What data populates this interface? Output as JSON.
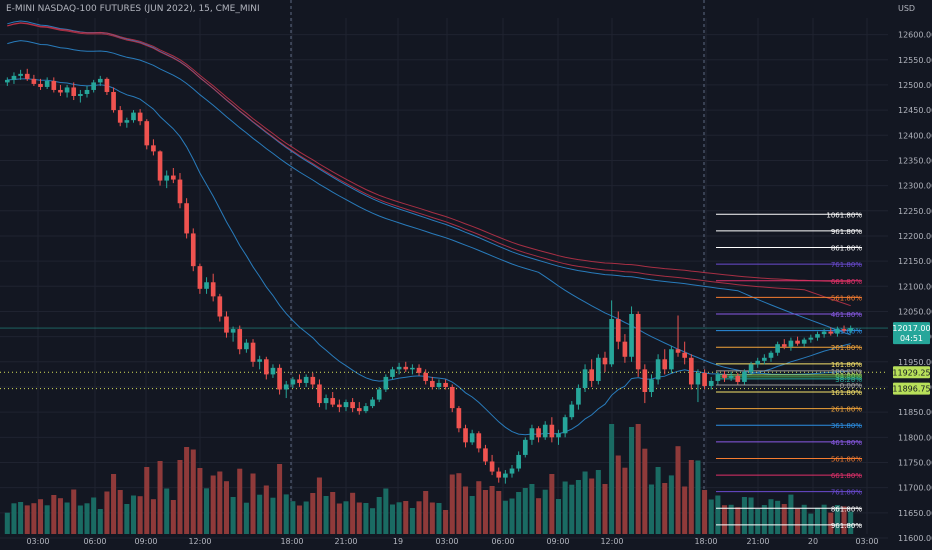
{
  "header": {
    "symbol_title": "E-MINI NASDAQ-100 FUTURES (JUN 2022), 15, CME_MINI",
    "currency": "USD"
  },
  "colors": {
    "background": "#131722",
    "grid": "#1f2330",
    "axis_text": "#b2b5be",
    "bull": "#26a69a",
    "bear": "#ef5350",
    "bull_volume": "#1a6b63",
    "bear_volume": "#8f3a3a",
    "ma_blue": "#2d8dd6",
    "ma_red": "#c2344a",
    "last_price_badge": "#26a69a",
    "highlight_badge": "#b8e05a"
  },
  "chart_data": {
    "type": "candlestick",
    "title": "E-MINI NASDAQ-100 FUTURES (JUN 2022), 15, CME_MINI",
    "ylim": [
      11600,
      12625
    ],
    "y_ticks": [
      11600,
      11650,
      11700,
      11750,
      11800,
      11850,
      11900,
      11950,
      12000,
      12050,
      12100,
      12150,
      12200,
      12250,
      12300,
      12350,
      12400,
      12450,
      12500,
      12550,
      12600
    ],
    "x_ticks": [
      "03:00",
      "06:00",
      "09:00",
      "12:00",
      "18:00",
      "21:00",
      "19",
      "03:00",
      "06:00",
      "09:00",
      "12:00",
      "18:00",
      "21:00",
      "20",
      "03:00"
    ],
    "candles": [
      {
        "t": 1,
        "o": 12505,
        "h": 12515,
        "l": 12498,
        "c": 12510
      },
      {
        "t": 2,
        "o": 12510,
        "h": 12525,
        "l": 12502,
        "c": 12518
      },
      {
        "t": 3,
        "o": 12518,
        "h": 12530,
        "l": 12510,
        "c": 12522
      },
      {
        "t": 4,
        "o": 12522,
        "h": 12532,
        "l": 12508,
        "c": 12512
      },
      {
        "t": 5,
        "o": 12512,
        "h": 12520,
        "l": 12498,
        "c": 12502
      },
      {
        "t": 6,
        "o": 12502,
        "h": 12512,
        "l": 12490,
        "c": 12496
      },
      {
        "t": 7,
        "o": 12496,
        "h": 12515,
        "l": 12492,
        "c": 12508
      },
      {
        "t": 8,
        "o": 12508,
        "h": 12515,
        "l": 12485,
        "c": 12490
      },
      {
        "t": 9,
        "o": 12490,
        "h": 12500,
        "l": 12478,
        "c": 12485
      },
      {
        "t": 10,
        "o": 12485,
        "h": 12500,
        "l": 12475,
        "c": 12495
      },
      {
        "t": 11,
        "o": 12495,
        "h": 12505,
        "l": 12470,
        "c": 12478
      },
      {
        "t": 12,
        "o": 12478,
        "h": 12490,
        "l": 12465,
        "c": 12482
      },
      {
        "t": 13,
        "o": 12482,
        "h": 12498,
        "l": 12475,
        "c": 12490
      },
      {
        "t": 14,
        "o": 12490,
        "h": 12510,
        "l": 12485,
        "c": 12505
      },
      {
        "t": 15,
        "o": 12505,
        "h": 12518,
        "l": 12498,
        "c": 12512
      },
      {
        "t": 16,
        "o": 12512,
        "h": 12515,
        "l": 12480,
        "c": 12486
      },
      {
        "t": 17,
        "o": 12486,
        "h": 12495,
        "l": 12445,
        "c": 12450
      },
      {
        "t": 18,
        "o": 12450,
        "h": 12458,
        "l": 12418,
        "c": 12425
      },
      {
        "t": 19,
        "o": 12425,
        "h": 12435,
        "l": 12415,
        "c": 12430
      },
      {
        "t": 20,
        "o": 12430,
        "h": 12450,
        "l": 12425,
        "c": 12445
      },
      {
        "t": 21,
        "o": 12445,
        "h": 12452,
        "l": 12420,
        "c": 12428
      },
      {
        "t": 22,
        "o": 12428,
        "h": 12432,
        "l": 12372,
        "c": 12380
      },
      {
        "t": 23,
        "o": 12380,
        "h": 12392,
        "l": 12360,
        "c": 12368
      },
      {
        "t": 24,
        "o": 12368,
        "h": 12370,
        "l": 12300,
        "c": 12310
      },
      {
        "t": 25,
        "o": 12310,
        "h": 12330,
        "l": 12295,
        "c": 12320
      },
      {
        "t": 26,
        "o": 12320,
        "h": 12335,
        "l": 12305,
        "c": 12312
      },
      {
        "t": 27,
        "o": 12312,
        "h": 12325,
        "l": 12255,
        "c": 12265
      },
      {
        "t": 28,
        "o": 12265,
        "h": 12275,
        "l": 12195,
        "c": 12205
      },
      {
        "t": 29,
        "o": 12205,
        "h": 12215,
        "l": 12130,
        "c": 12140
      },
      {
        "t": 30,
        "o": 12140,
        "h": 12145,
        "l": 12085,
        "c": 12095
      },
      {
        "t": 31,
        "o": 12095,
        "h": 12118,
        "l": 12085,
        "c": 12108
      },
      {
        "t": 32,
        "o": 12108,
        "h": 12125,
        "l": 12070,
        "c": 12080
      },
      {
        "t": 33,
        "o": 12080,
        "h": 12085,
        "l": 12030,
        "c": 12040
      },
      {
        "t": 34,
        "o": 12040,
        "h": 12050,
        "l": 11998,
        "c": 12008
      },
      {
        "t": 35,
        "o": 12008,
        "h": 12020,
        "l": 11990,
        "c": 12015
      },
      {
        "t": 36,
        "o": 12015,
        "h": 12022,
        "l": 11965,
        "c": 11975
      },
      {
        "t": 37,
        "o": 11975,
        "h": 11995,
        "l": 11968,
        "c": 11988
      },
      {
        "t": 38,
        "o": 11988,
        "h": 11995,
        "l": 11940,
        "c": 11950
      },
      {
        "t": 39,
        "o": 11950,
        "h": 11962,
        "l": 11935,
        "c": 11955
      },
      {
        "t": 40,
        "o": 11955,
        "h": 11960,
        "l": 11915,
        "c": 11925
      },
      {
        "t": 41,
        "o": 11925,
        "h": 11945,
        "l": 11918,
        "c": 11938
      },
      {
        "t": 42,
        "o": 11938,
        "h": 11945,
        "l": 11885,
        "c": 11895
      },
      {
        "t": 43,
        "o": 11895,
        "h": 11912,
        "l": 11878,
        "c": 11905
      },
      {
        "t": 44,
        "o": 11905,
        "h": 11920,
        "l": 11898,
        "c": 11915
      },
      {
        "t": 45,
        "o": 11915,
        "h": 11925,
        "l": 11900,
        "c": 11908
      },
      {
        "t": 46,
        "o": 11908,
        "h": 11925,
        "l": 11900,
        "c": 11920
      },
      {
        "t": 47,
        "o": 11920,
        "h": 11928,
        "l": 11898,
        "c": 11905
      },
      {
        "t": 48,
        "o": 11905,
        "h": 11915,
        "l": 11860,
        "c": 11868
      },
      {
        "t": 49,
        "o": 11868,
        "h": 11885,
        "l": 11855,
        "c": 11878
      },
      {
        "t": 50,
        "o": 11878,
        "h": 11890,
        "l": 11860,
        "c": 11865
      },
      {
        "t": 51,
        "o": 11865,
        "h": 11875,
        "l": 11850,
        "c": 11860
      },
      {
        "t": 52,
        "o": 11860,
        "h": 11875,
        "l": 11852,
        "c": 11870
      },
      {
        "t": 53,
        "o": 11870,
        "h": 11878,
        "l": 11850,
        "c": 11858
      },
      {
        "t": 54,
        "o": 11858,
        "h": 11870,
        "l": 11845,
        "c": 11852
      },
      {
        "t": 55,
        "o": 11852,
        "h": 11868,
        "l": 11848,
        "c": 11862
      },
      {
        "t": 56,
        "o": 11862,
        "h": 11880,
        "l": 11858,
        "c": 11875
      },
      {
        "t": 57,
        "o": 11875,
        "h": 11900,
        "l": 11870,
        "c": 11895
      },
      {
        "t": 58,
        "o": 11895,
        "h": 11925,
        "l": 11890,
        "c": 11920
      },
      {
        "t": 59,
        "o": 11920,
        "h": 11940,
        "l": 11915,
        "c": 11935
      },
      {
        "t": 60,
        "o": 11935,
        "h": 11948,
        "l": 11925,
        "c": 11940
      },
      {
        "t": 61,
        "o": 11940,
        "h": 11950,
        "l": 11930,
        "c": 11935
      },
      {
        "t": 62,
        "o": 11935,
        "h": 11945,
        "l": 11925,
        "c": 11938
      },
      {
        "t": 63,
        "o": 11938,
        "h": 11945,
        "l": 11922,
        "c": 11928
      },
      {
        "t": 64,
        "o": 11928,
        "h": 11935,
        "l": 11905,
        "c": 11912
      },
      {
        "t": 65,
        "o": 11912,
        "h": 11920,
        "l": 11895,
        "c": 11900
      },
      {
        "t": 66,
        "o": 11900,
        "h": 11915,
        "l": 11895,
        "c": 11908
      },
      {
        "t": 67,
        "o": 11908,
        "h": 11915,
        "l": 11895,
        "c": 11900
      },
      {
        "t": 68,
        "o": 11900,
        "h": 11905,
        "l": 11850,
        "c": 11858
      },
      {
        "t": 69,
        "o": 11858,
        "h": 11862,
        "l": 11810,
        "c": 11818
      },
      {
        "t": 70,
        "o": 11818,
        "h": 11825,
        "l": 11780,
        "c": 11790
      },
      {
        "t": 71,
        "o": 11790,
        "h": 11815,
        "l": 11785,
        "c": 11808
      },
      {
        "t": 72,
        "o": 11808,
        "h": 11812,
        "l": 11770,
        "c": 11778
      },
      {
        "t": 73,
        "o": 11778,
        "h": 11785,
        "l": 11745,
        "c": 11752
      },
      {
        "t": 74,
        "o": 11752,
        "h": 11765,
        "l": 11725,
        "c": 11732
      },
      {
        "t": 75,
        "o": 11732,
        "h": 11740,
        "l": 11710,
        "c": 11720
      },
      {
        "t": 76,
        "o": 11720,
        "h": 11735,
        "l": 11708,
        "c": 11728
      },
      {
        "t": 77,
        "o": 11728,
        "h": 11745,
        "l": 11720,
        "c": 11738
      },
      {
        "t": 78,
        "o": 11738,
        "h": 11772,
        "l": 11732,
        "c": 11765
      },
      {
        "t": 79,
        "o": 11765,
        "h": 11800,
        "l": 11760,
        "c": 11795
      },
      {
        "t": 80,
        "o": 11795,
        "h": 11825,
        "l": 11785,
        "c": 11818
      },
      {
        "t": 81,
        "o": 11818,
        "h": 11822,
        "l": 11790,
        "c": 11800
      },
      {
        "t": 82,
        "o": 11800,
        "h": 11832,
        "l": 11795,
        "c": 11825
      },
      {
        "t": 83,
        "o": 11825,
        "h": 11840,
        "l": 11790,
        "c": 11800
      },
      {
        "t": 84,
        "o": 11800,
        "h": 11815,
        "l": 11785,
        "c": 11808
      },
      {
        "t": 85,
        "o": 11808,
        "h": 11845,
        "l": 11800,
        "c": 11840
      },
      {
        "t": 86,
        "o": 11840,
        "h": 11872,
        "l": 11835,
        "c": 11865
      },
      {
        "t": 87,
        "o": 11865,
        "h": 11905,
        "l": 11855,
        "c": 11898
      },
      {
        "t": 88,
        "o": 11898,
        "h": 11945,
        "l": 11890,
        "c": 11935
      },
      {
        "t": 89,
        "o": 11935,
        "h": 11955,
        "l": 11900,
        "c": 11912
      },
      {
        "t": 90,
        "o": 11912,
        "h": 11965,
        "l": 11905,
        "c": 11958
      },
      {
        "t": 91,
        "o": 11958,
        "h": 11970,
        "l": 11930,
        "c": 11945
      },
      {
        "t": 92,
        "o": 11945,
        "h": 12072,
        "l": 11940,
        "c": 12035
      },
      {
        "t": 93,
        "o": 12035,
        "h": 12050,
        "l": 11975,
        "c": 11990
      },
      {
        "t": 94,
        "o": 11990,
        "h": 12005,
        "l": 11948,
        "c": 11960
      },
      {
        "t": 95,
        "o": 11960,
        "h": 12060,
        "l": 11950,
        "c": 12045
      },
      {
        "t": 96,
        "o": 12045,
        "h": 12050,
        "l": 11920,
        "c": 11935
      },
      {
        "t": 97,
        "o": 11935,
        "h": 11945,
        "l": 11868,
        "c": 11890
      },
      {
        "t": 98,
        "o": 11890,
        "h": 11925,
        "l": 11880,
        "c": 11915
      },
      {
        "t": 99,
        "o": 11915,
        "h": 11965,
        "l": 11905,
        "c": 11955
      },
      {
        "t": 100,
        "o": 11955,
        "h": 11975,
        "l": 11925,
        "c": 11935
      },
      {
        "t": 101,
        "o": 11935,
        "h": 11982,
        "l": 11928,
        "c": 11975
      },
      {
        "t": 102,
        "o": 11975,
        "h": 12042,
        "l": 11960,
        "c": 11968
      },
      {
        "t": 103,
        "o": 11968,
        "h": 11990,
        "l": 11945,
        "c": 11958
      },
      {
        "t": 104,
        "o": 11958,
        "h": 11965,
        "l": 11895,
        "c": 11905
      },
      {
        "t": 105,
        "o": 11905,
        "h": 11935,
        "l": 11870,
        "c": 11928
      },
      {
        "t": 106,
        "o": 11928,
        "h": 11935,
        "l": 11895,
        "c": 11902
      },
      {
        "t": 107,
        "o": 11902,
        "h": 11920,
        "l": 11895,
        "c": 11912
      },
      {
        "t": 108,
        "o": 11912,
        "h": 11930,
        "l": 11905,
        "c": 11925
      },
      {
        "t": 109,
        "o": 11925,
        "h": 11932,
        "l": 11910,
        "c": 11918
      },
      {
        "t": 110,
        "o": 11918,
        "h": 11930,
        "l": 11912,
        "c": 11922
      },
      {
        "t": 111,
        "o": 11922,
        "h": 11928,
        "l": 11905,
        "c": 11910
      },
      {
        "t": 112,
        "o": 11910,
        "h": 11935,
        "l": 11905,
        "c": 11930
      },
      {
        "t": 113,
        "o": 11930,
        "h": 11950,
        "l": 11925,
        "c": 11945
      },
      {
        "t": 114,
        "o": 11945,
        "h": 11958,
        "l": 11938,
        "c": 11952
      },
      {
        "t": 115,
        "o": 11952,
        "h": 11965,
        "l": 11945,
        "c": 11958
      },
      {
        "t": 116,
        "o": 11958,
        "h": 11972,
        "l": 11950,
        "c": 11968
      },
      {
        "t": 117,
        "o": 11968,
        "h": 11990,
        "l": 11962,
        "c": 11985
      },
      {
        "t": 118,
        "o": 11985,
        "h": 11995,
        "l": 11975,
        "c": 11980
      },
      {
        "t": 119,
        "o": 11980,
        "h": 11998,
        "l": 11972,
        "c": 11992
      },
      {
        "t": 120,
        "o": 11992,
        "h": 12000,
        "l": 11982,
        "c": 11986
      },
      {
        "t": 121,
        "o": 11986,
        "h": 11998,
        "l": 11980,
        "c": 11994
      },
      {
        "t": 122,
        "o": 11994,
        "h": 12004,
        "l": 11988,
        "c": 11998
      },
      {
        "t": 123,
        "o": 11998,
        "h": 12010,
        "l": 11992,
        "c": 12005
      },
      {
        "t": 124,
        "o": 12005,
        "h": 12015,
        "l": 11998,
        "c": 12010
      },
      {
        "t": 125,
        "o": 12010,
        "h": 12018,
        "l": 12002,
        "c": 12006
      },
      {
        "t": 126,
        "o": 12006,
        "h": 12020,
        "l": 12000,
        "c": 12015
      },
      {
        "t": 127,
        "o": 12015,
        "h": 12022,
        "l": 12008,
        "c": 12012
      },
      {
        "t": 128,
        "o": 12012,
        "h": 12022,
        "l": 12006,
        "c": 12017
      }
    ],
    "volume_note": "volume bars drawn beneath price, colored by candle direction",
    "moving_averages": [
      {
        "color": "ma_blue",
        "style": "fast"
      },
      {
        "color": "ma_blue",
        "style": "medium"
      },
      {
        "color": "ma_blue",
        "style": "slow"
      },
      {
        "color": "ma_red",
        "style": "slow"
      },
      {
        "color": "ma_red",
        "style": "slower"
      }
    ],
    "fib_levels": [
      {
        "label": "1061.80%",
        "price": 12243,
        "color": "#ffffff"
      },
      {
        "label": "961.80%",
        "price": 12210,
        "color": "#ffffff"
      },
      {
        "label": "861.80%",
        "price": 12177,
        "color": "#ffffff"
      },
      {
        "label": "761.80%",
        "price": 12144,
        "color": "#6b4bd1"
      },
      {
        "label": "661.80%",
        "price": 12111,
        "color": "#e0306a"
      },
      {
        "label": "561.80%",
        "price": 12078,
        "color": "#f57c30"
      },
      {
        "label": "461.80%",
        "price": 12045,
        "color": "#8a5ae6"
      },
      {
        "label": "361.80%",
        "price": 12012,
        "color": "#2c8fe3"
      },
      {
        "label": "261.80%",
        "price": 11979,
        "color": "#f2a43a"
      },
      {
        "label": "161.80%",
        "price": 11946,
        "color": "#f7e36b"
      },
      {
        "label": "100.00%",
        "price": 11932,
        "color": "#9e9e9e"
      },
      {
        "label": "61.80%",
        "price": 11924,
        "color": "#9bd35c"
      },
      {
        "label": "50.00%",
        "price": 11920,
        "color": "#4caf50"
      },
      {
        "label": "38.20%",
        "price": 11916,
        "color": "#26a69a"
      },
      {
        "label": "0.00%",
        "price": 11904,
        "color": "#9e9e9e"
      },
      {
        "label": "161.80%",
        "price": 11890,
        "color": "#f7e36b"
      },
      {
        "label": "261.80%",
        "price": 11857,
        "color": "#f2a43a"
      },
      {
        "label": "361.80%",
        "price": 11824,
        "color": "#2c8fe3"
      },
      {
        "label": "461.80%",
        "price": 11791,
        "color": "#8a5ae6"
      },
      {
        "label": "561.80%",
        "price": 11758,
        "color": "#f57c30"
      },
      {
        "label": "661.80%",
        "price": 11725,
        "color": "#e0306a"
      },
      {
        "label": "761.80%",
        "price": 11692,
        "color": "#6b4bd1"
      },
      {
        "label": "861.80%",
        "price": 11659,
        "color": "#ffffff"
      },
      {
        "label": "961.80%",
        "price": 11626,
        "color": "#ffffff"
      }
    ],
    "price_badges": [
      {
        "price": 12017,
        "text": "12017.00",
        "sub": "04:51",
        "color": "#26a69a"
      },
      {
        "price": 11929.25,
        "text": "11929.25",
        "color": "#b8e05a"
      },
      {
        "price": 11896.75,
        "text": "11896.75",
        "color": "#b8e05a"
      }
    ],
    "dotted_levels": [
      11929.25,
      11896.75
    ],
    "session_breaks": [
      "18:00",
      "18:00"
    ]
  }
}
